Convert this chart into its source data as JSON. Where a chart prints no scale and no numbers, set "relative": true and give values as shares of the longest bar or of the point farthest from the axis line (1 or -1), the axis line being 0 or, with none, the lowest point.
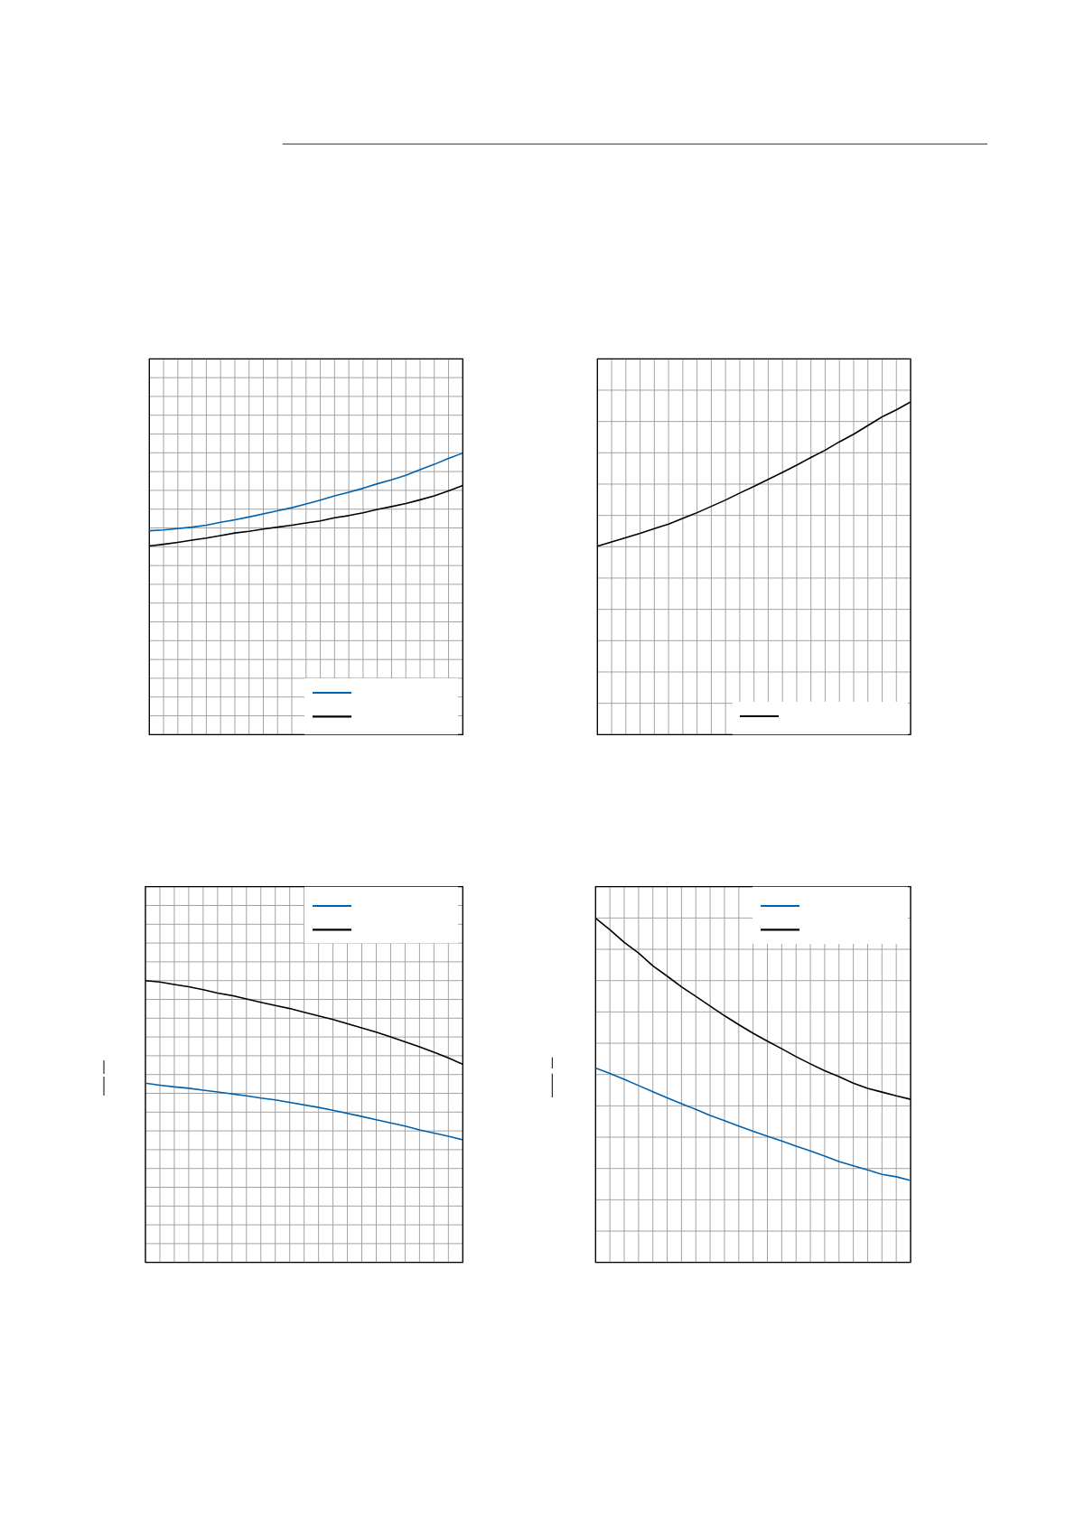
{
  "chart_data": [
    {
      "type": "line",
      "relative": true,
      "grid": true,
      "categories": [
        null,
        null,
        null,
        null,
        null,
        null,
        null,
        null,
        null,
        null,
        null,
        null,
        null,
        null,
        null,
        null,
        null,
        null,
        null,
        null,
        null,
        null,
        null
      ],
      "series": [
        {
          "color": "#0062ad",
          "values": [
            0.724,
            0.727,
            0.732,
            0.737,
            0.744,
            0.754,
            0.763,
            0.773,
            0.784,
            0.795,
            0.806,
            0.819,
            0.833,
            0.848,
            0.861,
            0.875,
            0.891,
            0.905,
            0.921,
            0.941,
            0.96,
            0.981,
            1.0
          ]
        },
        {
          "color": "#000000",
          "values": [
            0.67,
            0.676,
            0.683,
            0.691,
            0.698,
            0.707,
            0.716,
            0.722,
            0.73,
            0.737,
            0.744,
            0.752,
            0.759,
            0.77,
            0.778,
            0.788,
            0.8,
            0.81,
            0.821,
            0.834,
            0.848,
            0.866,
            0.885
          ]
        }
      ]
    },
    {
      "type": "line",
      "relative": true,
      "grid": true,
      "categories": [
        null,
        null,
        null,
        null,
        null,
        null,
        null,
        null,
        null,
        null,
        null,
        null,
        null,
        null,
        null,
        null,
        null,
        null,
        null,
        null,
        null,
        null,
        null
      ],
      "series": [
        {
          "color": "#000000",
          "values": [
            0.566,
            0.579,
            0.592,
            0.605,
            0.619,
            0.633,
            0.65,
            0.667,
            0.686,
            0.705,
            0.726,
            0.746,
            0.767,
            0.788,
            0.81,
            0.833,
            0.855,
            0.88,
            0.903,
            0.929,
            0.955,
            0.976,
            1.0
          ]
        }
      ]
    },
    {
      "type": "line",
      "relative": true,
      "grid": true,
      "categories": [
        null,
        null,
        null,
        null,
        null,
        null,
        null,
        null,
        null,
        null,
        null,
        null,
        null,
        null,
        null,
        null,
        null,
        null,
        null,
        null,
        null,
        null,
        null
      ],
      "series": [
        {
          "color": "#0062ad",
          "values": [
            0.636,
            0.629,
            0.623,
            0.618,
            0.611,
            0.605,
            0.598,
            0.591,
            0.583,
            0.577,
            0.568,
            0.559,
            0.55,
            0.54,
            0.529,
            0.518,
            0.506,
            0.495,
            0.484,
            0.47,
            0.459,
            0.448,
            0.435
          ]
        },
        {
          "color": "#000000",
          "values": [
            1.0,
            0.995,
            0.986,
            0.978,
            0.968,
            0.956,
            0.947,
            0.935,
            0.923,
            0.912,
            0.901,
            0.888,
            0.875,
            0.862,
            0.847,
            0.832,
            0.817,
            0.8,
            0.783,
            0.765,
            0.746,
            0.726,
            0.703
          ]
        }
      ]
    },
    {
      "type": "line",
      "relative": true,
      "grid": true,
      "categories": [
        null,
        null,
        null,
        null,
        null,
        null,
        null,
        null,
        null,
        null,
        null,
        null,
        null,
        null,
        null,
        null,
        null,
        null,
        null,
        null,
        null,
        null,
        null
      ],
      "series": [
        {
          "color": "#0062ad",
          "values": [
            0.565,
            0.549,
            0.532,
            0.514,
            0.496,
            0.478,
            0.461,
            0.445,
            0.427,
            0.412,
            0.396,
            0.381,
            0.367,
            0.353,
            0.338,
            0.324,
            0.309,
            0.293,
            0.281,
            0.269,
            0.256,
            0.249,
            0.238
          ]
        },
        {
          "color": "#000000",
          "values": [
            1.0,
            0.967,
            0.93,
            0.899,
            0.862,
            0.832,
            0.801,
            0.773,
            0.745,
            0.717,
            0.691,
            0.666,
            0.643,
            0.621,
            0.598,
            0.577,
            0.557,
            0.54,
            0.521,
            0.506,
            0.495,
            0.484,
            0.474
          ]
        }
      ]
    }
  ]
}
